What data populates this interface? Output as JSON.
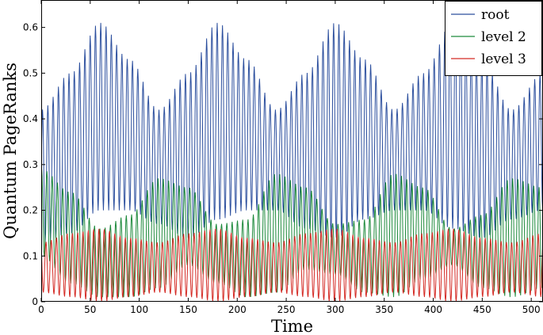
{
  "chart_data": {
    "type": "line",
    "xlabel": "Time",
    "ylabel": "Quantum PageRanks",
    "xlim": [
      0,
      512
    ],
    "ylim": [
      0,
      0.66
    ],
    "x_ticks": [
      0,
      50,
      100,
      150,
      200,
      250,
      300,
      350,
      400,
      450,
      500
    ],
    "y_ticks": [
      0,
      0.1,
      0.2,
      0.3,
      0.4,
      0.5,
      0.6
    ],
    "y_tick_labels": [
      "0",
      "0.1",
      "0.2",
      "0.3",
      "0.4",
      "0.5",
      "0.6"
    ],
    "grid": false,
    "legend_position": "top-right",
    "oscillation_period": 5.4,
    "beat_period": 118,
    "series": [
      {
        "name": "root",
        "color": "#2c4f9e",
        "envelope_x": [
          0,
          30,
          60,
          90,
          120,
          150,
          180,
          210,
          240,
          270,
          300,
          330,
          360,
          390,
          420,
          450,
          480,
          512
        ],
        "envelope_max": [
          0.42,
          0.5,
          0.61,
          0.53,
          0.42,
          0.5,
          0.61,
          0.53,
          0.42,
          0.5,
          0.61,
          0.53,
          0.42,
          0.5,
          0.61,
          0.53,
          0.42,
          0.5
        ],
        "envelope_min": [
          0.13,
          0.15,
          0.2,
          0.2,
          0.17,
          0.14,
          0.18,
          0.2,
          0.2,
          0.16,
          0.14,
          0.18,
          0.2,
          0.2,
          0.16,
          0.14,
          0.18,
          0.2
        ]
      },
      {
        "name": "level 2",
        "color": "#1e8a3c",
        "envelope_x": [
          0,
          30,
          60,
          90,
          120,
          150,
          180,
          210,
          240,
          270,
          300,
          330,
          360,
          390,
          420,
          450,
          480,
          512
        ],
        "envelope_max": [
          0.29,
          0.24,
          0.16,
          0.19,
          0.27,
          0.25,
          0.17,
          0.18,
          0.28,
          0.25,
          0.17,
          0.18,
          0.28,
          0.25,
          0.16,
          0.19,
          0.27,
          0.25
        ],
        "envelope_min": [
          0.1,
          0.04,
          0.01,
          0.01,
          0.03,
          0.08,
          0.04,
          0.01,
          0.02,
          0.07,
          0.06,
          0.02,
          0.01,
          0.05,
          0.08,
          0.03,
          0.01,
          0.03
        ]
      },
      {
        "name": "level 3",
        "color": "#d42a24",
        "envelope_x": [
          0,
          30,
          60,
          90,
          120,
          150,
          180,
          210,
          240,
          270,
          300,
          330,
          360,
          390,
          420,
          450,
          480,
          512
        ],
        "envelope_max": [
          0.13,
          0.15,
          0.16,
          0.14,
          0.13,
          0.15,
          0.16,
          0.14,
          0.13,
          0.15,
          0.16,
          0.14,
          0.13,
          0.15,
          0.16,
          0.14,
          0.13,
          0.15
        ],
        "envelope_min": [
          0.02,
          0.01,
          0.0,
          0.01,
          0.02,
          0.01,
          0.0,
          0.01,
          0.02,
          0.01,
          0.0,
          0.01,
          0.02,
          0.01,
          0.0,
          0.01,
          0.02,
          0.01
        ]
      }
    ]
  }
}
